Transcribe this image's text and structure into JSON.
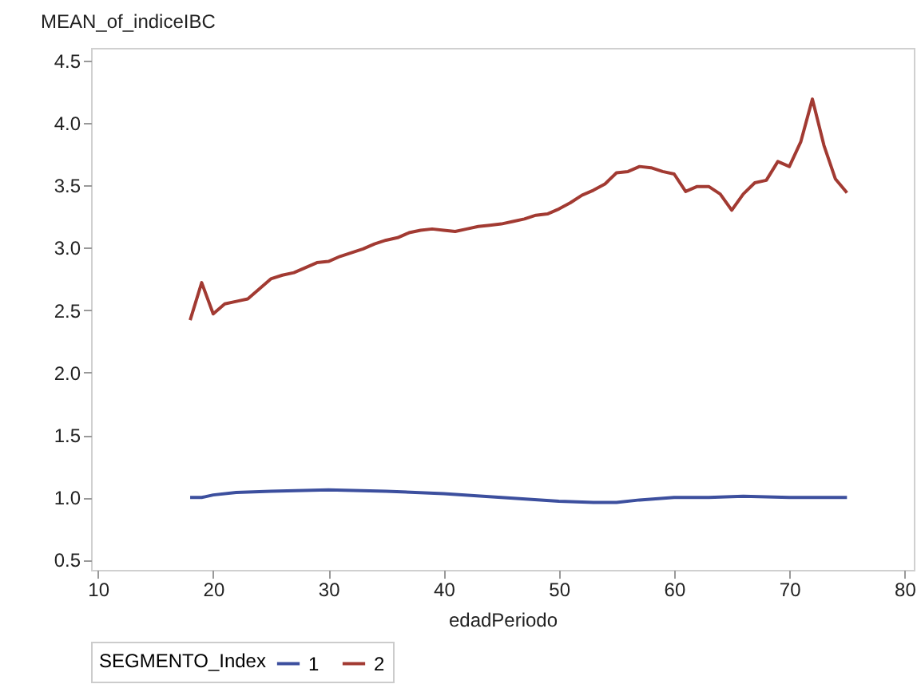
{
  "chart_data": {
    "type": "line",
    "ylabel": "MEAN_of_indiceIBC",
    "xlabel": "edadPeriodo",
    "legend_title": "SEGMENTO_Index",
    "legend": "bottom",
    "grid": false,
    "marker": "none",
    "line_style": "solid",
    "xlim": [
      9.4,
      80.8
    ],
    "xticks": [
      10,
      20,
      30,
      40,
      50,
      60,
      70,
      80
    ],
    "ylim": [
      0.42,
      4.6
    ],
    "yticks": [
      0.5,
      {
        "value": 1,
        "label": "1.0"
      },
      1.5,
      {
        "value": 2,
        "label": "2.0"
      },
      2.5,
      {
        "value": 3,
        "label": "3.0"
      },
      3.5,
      {
        "value": 4,
        "label": "4.0"
      },
      4.5
    ],
    "series": [
      {
        "name": "1",
        "color": "#3c4f9e",
        "x": [
          18,
          19,
          20,
          22,
          25,
          30,
          35,
          40,
          45,
          50,
          53,
          55,
          57,
          60,
          63,
          66,
          70,
          72,
          75
        ],
        "values": [
          1.0,
          1.0,
          1.02,
          1.04,
          1.05,
          1.06,
          1.05,
          1.03,
          1.0,
          0.97,
          0.96,
          0.96,
          0.98,
          1.0,
          1.0,
          1.01,
          1.0,
          1.0,
          1.0
        ]
      },
      {
        "name": "2",
        "color": "#a23a32",
        "x": [
          18,
          19,
          20,
          21,
          22,
          23,
          24,
          25,
          26,
          27,
          28,
          29,
          30,
          31,
          32,
          33,
          34,
          35,
          36,
          37,
          38,
          39,
          40,
          41,
          42,
          43,
          44,
          45,
          46,
          47,
          48,
          49,
          50,
          51,
          52,
          53,
          54,
          55,
          56,
          57,
          58,
          59,
          60,
          61,
          62,
          63,
          64,
          65,
          66,
          67,
          68,
          69,
          70,
          71,
          72,
          73,
          74,
          75
        ],
        "values": [
          2.42,
          2.72,
          2.47,
          2.55,
          2.57,
          2.59,
          2.67,
          2.75,
          2.78,
          2.8,
          2.84,
          2.88,
          2.89,
          2.93,
          2.96,
          2.99,
          3.03,
          3.06,
          3.08,
          3.12,
          3.14,
          3.15,
          3.14,
          3.13,
          3.15,
          3.17,
          3.18,
          3.19,
          3.21,
          3.23,
          3.26,
          3.27,
          3.31,
          3.36,
          3.42,
          3.46,
          3.51,
          3.6,
          3.61,
          3.65,
          3.64,
          3.61,
          3.59,
          3.45,
          3.49,
          3.49,
          3.43,
          3.3,
          3.43,
          3.52,
          3.54,
          3.69,
          3.65,
          3.85,
          4.19,
          3.82,
          3.55,
          3.44
        ]
      }
    ]
  }
}
